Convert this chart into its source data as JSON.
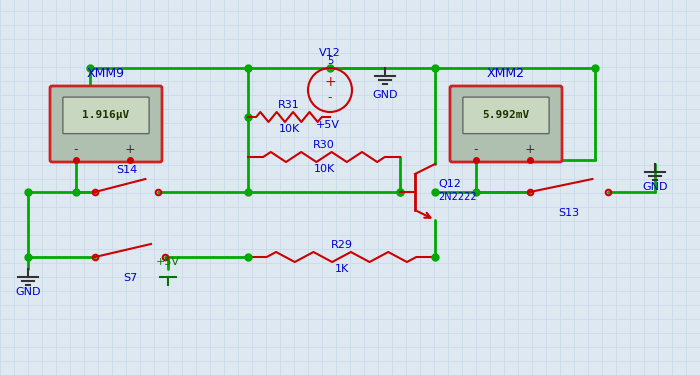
{
  "bg_color": "#dde8f0",
  "grid_color": "#c8d8e8",
  "wire_color": "#00aa00",
  "component_color": "#cc0000",
  "text_color": "#0000cc",
  "meter_bg": "#b0c0b0",
  "meter_screen": "#c8d8c0",
  "meter_border": "#cc2222",
  "vm1_label": "XMM9",
  "vm1_value": "1.916μV",
  "vm2_label": "XMM2",
  "vm2_value": "5.992mV",
  "v12_label": "V12",
  "v12_sub": "5",
  "r31_label": "R31",
  "r31_val": "10K",
  "r30_label": "R30",
  "r30_val": "10K",
  "r29_label": "R29",
  "r29_val": "1K",
  "q12_label": "Q12",
  "q12_sub": "2N2222",
  "s14_label": "S14",
  "s7_label": "S7",
  "s13_label": "S13",
  "gnd_label": "GND",
  "vcc_label": "+5V"
}
